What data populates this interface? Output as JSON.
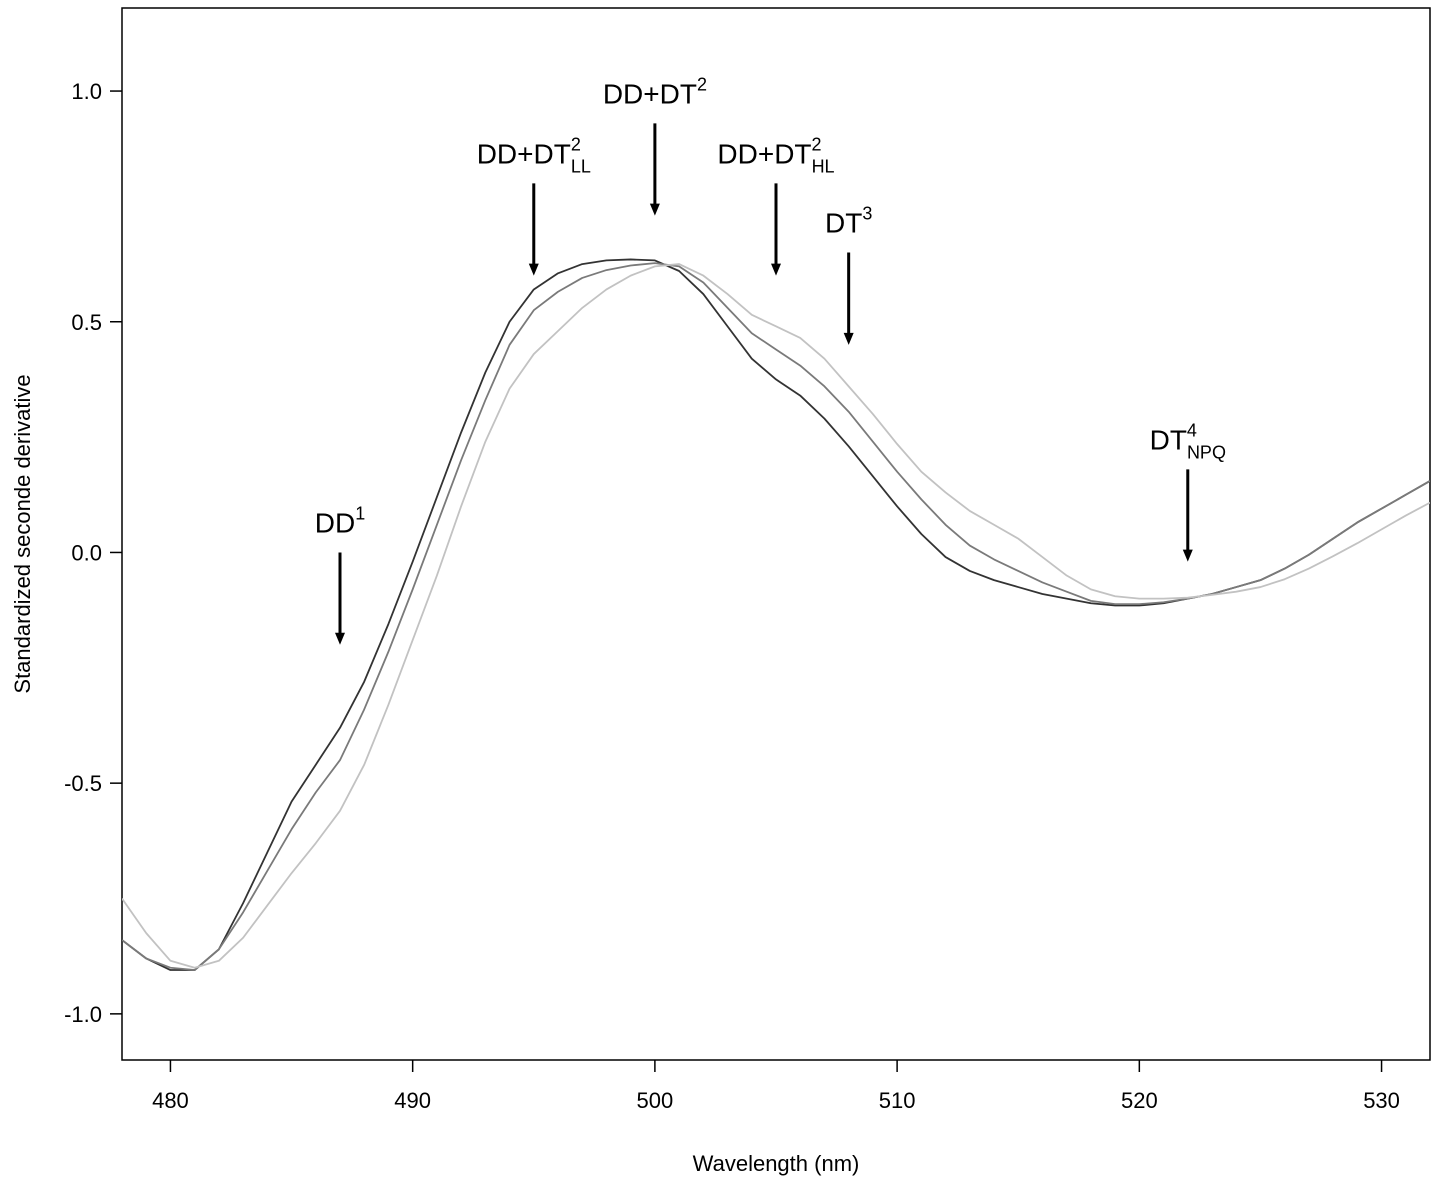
{
  "chart_data": {
    "type": "line",
    "xlabel": "Wavelength (nm)",
    "ylabel": "Standardized seconde derivative",
    "xlim": [
      478,
      532
    ],
    "ylim": [
      -1.1,
      1.18
    ],
    "xticks": [
      480,
      490,
      500,
      510,
      520,
      530
    ],
    "yticks": [
      -1.0,
      -0.5,
      0.0,
      0.5,
      1.0
    ],
    "xtick_labels": [
      "480",
      "490",
      "500",
      "510",
      "520",
      "530"
    ],
    "ytick_labels": [
      "-1.0",
      "-0.5",
      "0.0",
      "0.5",
      "1.0"
    ],
    "grid": false,
    "series": [
      {
        "color": "#333333",
        "x": [
          478,
          479,
          480,
          481,
          482,
          483,
          484,
          485,
          486,
          487,
          488,
          489,
          490,
          491,
          492,
          493,
          494,
          495,
          496,
          497,
          498,
          499,
          500,
          501,
          502,
          503,
          504,
          505,
          506,
          507,
          508,
          509,
          510,
          511,
          512,
          513,
          514,
          515,
          516,
          517,
          518,
          519,
          520,
          521,
          522,
          523,
          524,
          525,
          526,
          527,
          528,
          529,
          530,
          531,
          532
        ],
        "values": [
          -0.84,
          -0.88,
          -0.905,
          -0.905,
          -0.86,
          -0.76,
          -0.65,
          -0.54,
          -0.46,
          -0.38,
          -0.28,
          -0.155,
          -0.02,
          0.12,
          0.26,
          0.39,
          0.5,
          0.57,
          0.605,
          0.625,
          0.633,
          0.635,
          0.633,
          0.61,
          0.56,
          0.49,
          0.42,
          0.375,
          0.34,
          0.29,
          0.23,
          0.165,
          0.1,
          0.04,
          -0.01,
          -0.04,
          -0.06,
          -0.075,
          -0.09,
          -0.1,
          -0.11,
          -0.115,
          -0.115,
          -0.11,
          -0.1,
          -0.09,
          -0.075,
          -0.06,
          -0.035,
          -0.005,
          0.03,
          0.065,
          0.095,
          0.125,
          0.155
        ]
      },
      {
        "color": "#7a7a7a",
        "x": [
          478,
          479,
          480,
          481,
          482,
          483,
          484,
          485,
          486,
          487,
          488,
          489,
          490,
          491,
          492,
          493,
          494,
          495,
          496,
          497,
          498,
          499,
          500,
          501,
          502,
          503,
          504,
          505,
          506,
          507,
          508,
          509,
          510,
          511,
          512,
          513,
          514,
          515,
          516,
          517,
          518,
          519,
          520,
          521,
          522,
          523,
          524,
          525,
          526,
          527,
          528,
          529,
          530,
          531,
          532
        ],
        "values": [
          -0.84,
          -0.88,
          -0.9,
          -0.905,
          -0.86,
          -0.78,
          -0.69,
          -0.6,
          -0.52,
          -0.45,
          -0.34,
          -0.215,
          -0.08,
          0.06,
          0.2,
          0.33,
          0.45,
          0.525,
          0.565,
          0.595,
          0.612,
          0.622,
          0.627,
          0.62,
          0.585,
          0.53,
          0.475,
          0.44,
          0.405,
          0.36,
          0.305,
          0.24,
          0.175,
          0.115,
          0.06,
          0.015,
          -0.015,
          -0.04,
          -0.065,
          -0.085,
          -0.105,
          -0.112,
          -0.112,
          -0.108,
          -0.1,
          -0.09,
          -0.075,
          -0.06,
          -0.035,
          -0.005,
          0.03,
          0.065,
          0.095,
          0.125,
          0.155
        ]
      },
      {
        "color": "#c2c2c2",
        "x": [
          478,
          479,
          480,
          481,
          482,
          483,
          484,
          485,
          486,
          487,
          488,
          489,
          490,
          491,
          492,
          493,
          494,
          495,
          496,
          497,
          498,
          499,
          500,
          501,
          502,
          503,
          504,
          505,
          506,
          507,
          508,
          509,
          510,
          511,
          512,
          513,
          514,
          515,
          516,
          517,
          518,
          519,
          520,
          521,
          522,
          523,
          524,
          525,
          526,
          527,
          528,
          529,
          530,
          531,
          532
        ],
        "values": [
          -0.75,
          -0.825,
          -0.885,
          -0.9,
          -0.885,
          -0.835,
          -0.765,
          -0.695,
          -0.63,
          -0.56,
          -0.46,
          -0.33,
          -0.19,
          -0.05,
          0.1,
          0.24,
          0.355,
          0.43,
          0.48,
          0.53,
          0.57,
          0.6,
          0.62,
          0.625,
          0.6,
          0.56,
          0.515,
          0.49,
          0.465,
          0.42,
          0.36,
          0.3,
          0.235,
          0.175,
          0.13,
          0.09,
          0.06,
          0.03,
          -0.01,
          -0.05,
          -0.08,
          -0.095,
          -0.1,
          -0.1,
          -0.098,
          -0.092,
          -0.085,
          -0.075,
          -0.058,
          -0.035,
          -0.008,
          0.02,
          0.05,
          0.08,
          0.108
        ]
      }
    ],
    "annotations": [
      {
        "base": "DD",
        "sup": "1",
        "sub": "",
        "x": 487,
        "arrow_top": 0.0,
        "arrow_tip": -0.2
      },
      {
        "base": "DD+DT",
        "sup": "2",
        "sub": "LL",
        "x": 495,
        "arrow_top": 0.8,
        "arrow_tip": 0.6
      },
      {
        "base": "DD+DT",
        "sup": "2",
        "sub": "",
        "x": 500,
        "arrow_top": 0.93,
        "arrow_tip": 0.73
      },
      {
        "base": "DD+DT",
        "sup": "2",
        "sub": "HL",
        "x": 505,
        "arrow_top": 0.8,
        "arrow_tip": 0.6
      },
      {
        "base": "DT",
        "sup": "3",
        "sub": "",
        "x": 508,
        "arrow_top": 0.65,
        "arrow_tip": 0.45
      },
      {
        "base": "DT",
        "sup": "4",
        "sub": "NPQ",
        "x": 522,
        "arrow_top": 0.18,
        "arrow_tip": -0.02
      }
    ]
  }
}
